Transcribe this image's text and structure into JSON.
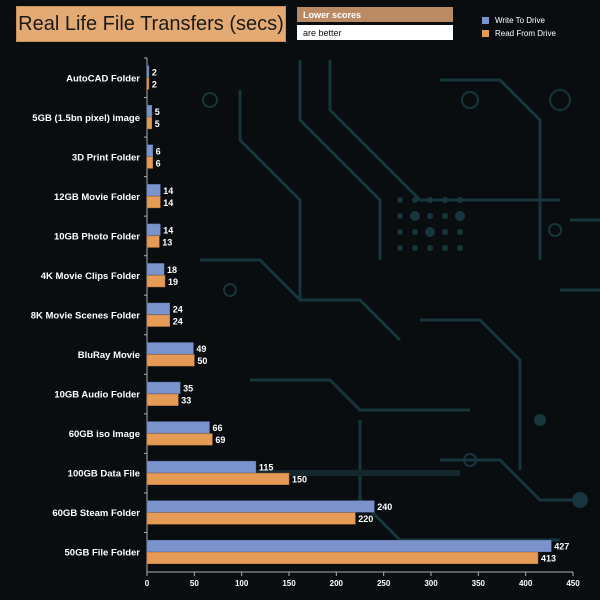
{
  "colors": {
    "write": "#7b93cc",
    "read": "#e59a55",
    "text": "#ffffff",
    "axis": "#aab0b5"
  },
  "header": {
    "title": "Real Life File Transfers (secs)",
    "note_line1": "Lower scores",
    "note_line2": "are better"
  },
  "chart_data": {
    "type": "bar",
    "orientation": "horizontal",
    "title": "Real Life File Transfers (secs)",
    "xlabel": "",
    "ylabel": "",
    "xlim": [
      0,
      450
    ],
    "xticks": [
      0,
      50,
      100,
      150,
      200,
      250,
      300,
      350,
      400,
      450
    ],
    "legend_position": "top-right",
    "categories": [
      "AutoCAD Folder",
      "5GB (1.5bn pixel) image",
      "3D Print Folder",
      "12GB Movie Folder",
      "10GB Photo Folder",
      "4K Movie Clips Folder",
      "8K Movie Scenes Folder",
      "BluRay Movie",
      "10GB Audio Folder",
      "60GB iso Image",
      "100GB Data File",
      "60GB Steam Folder",
      "50GB File Folder"
    ],
    "series": [
      {
        "name": "Write To  Drive",
        "values": [
          2,
          5,
          6,
          14,
          14,
          18,
          24,
          49,
          35,
          66,
          115,
          240,
          427
        ]
      },
      {
        "name": "Read From  Drive",
        "values": [
          2,
          5,
          6,
          14,
          13,
          19,
          24,
          50,
          33,
          69,
          150,
          220,
          413
        ]
      }
    ]
  }
}
